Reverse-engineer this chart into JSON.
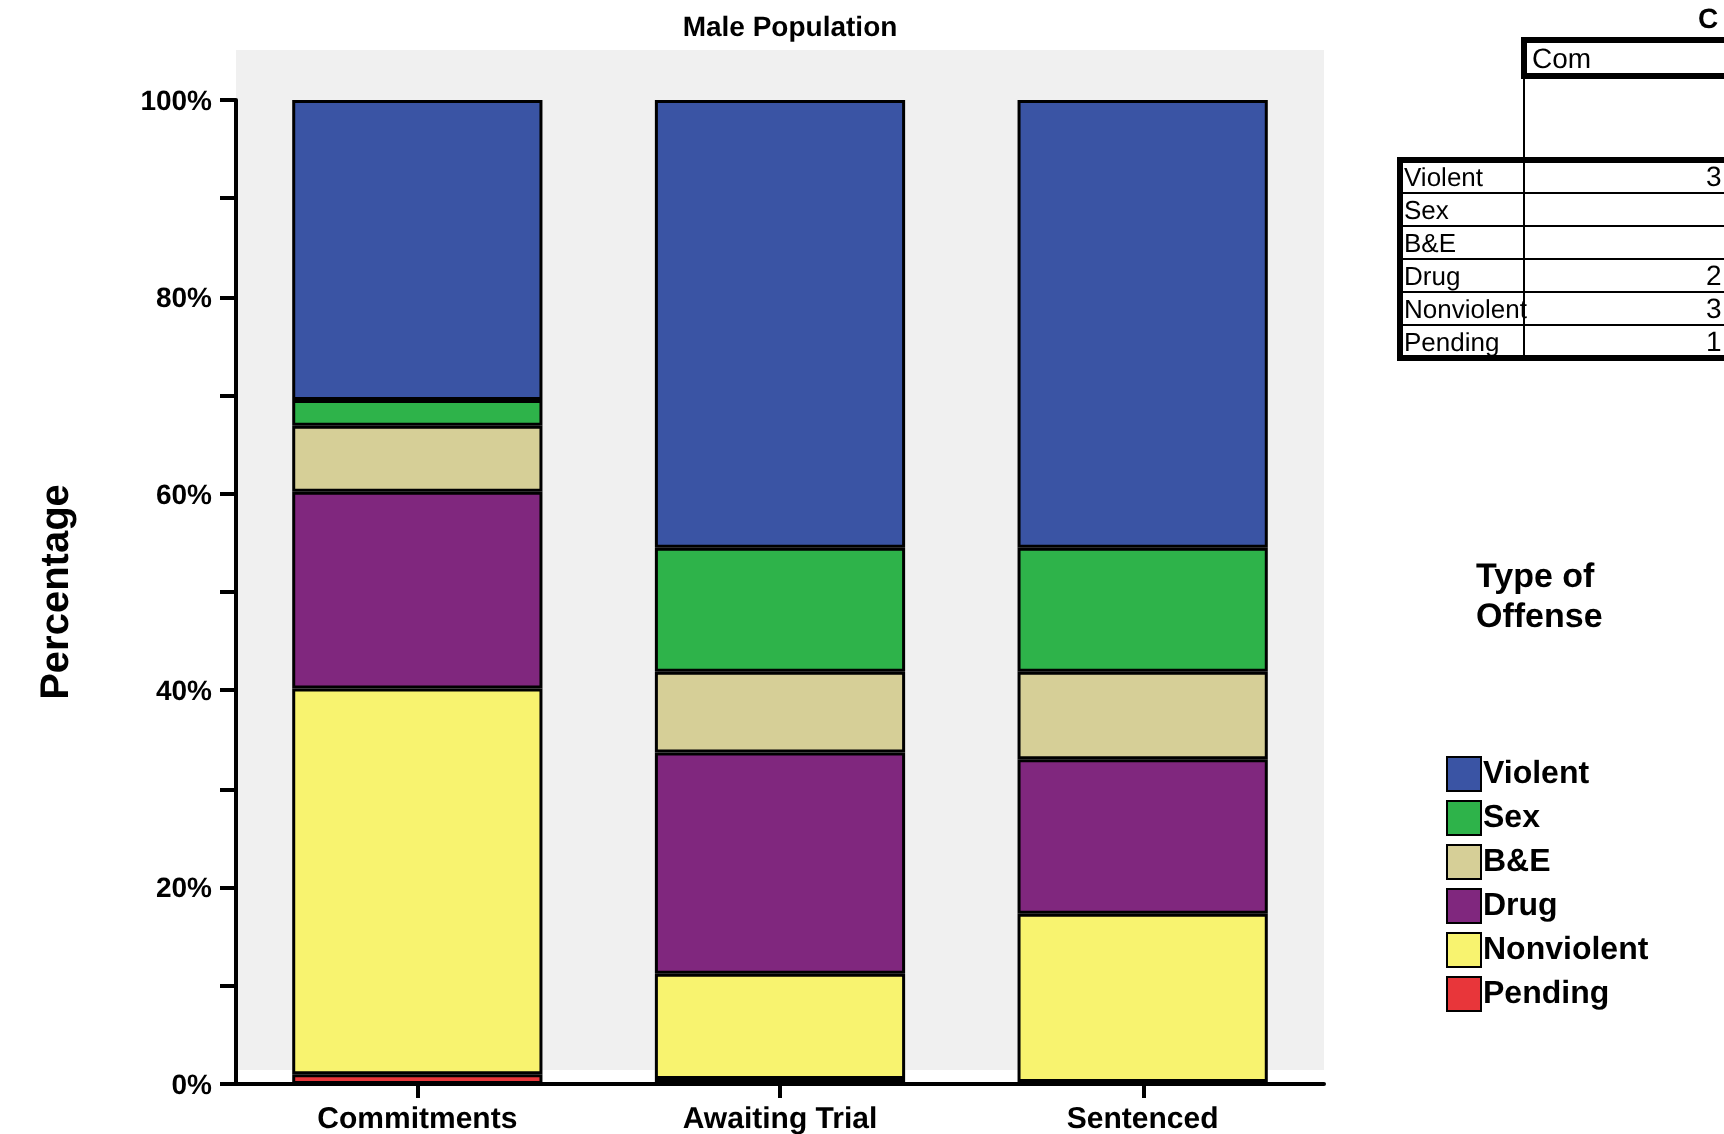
{
  "chart_data": {
    "type": "bar",
    "title": "Male Population",
    "ylabel": "Percentage",
    "legend_title": "Type of Offense",
    "categories": [
      "Commitments",
      "Awaiting Trial",
      "Sentenced"
    ],
    "stacked": true,
    "series": [
      {
        "name": "Pending",
        "color": "#e8363a",
        "values": [
          1.0,
          0.5,
          0.2
        ]
      },
      {
        "name": "Nonviolent",
        "color": "#f8f36f",
        "values": [
          39.2,
          10.7,
          17.1
        ]
      },
      {
        "name": "Drug",
        "color": "#80277e",
        "values": [
          20.0,
          22.5,
          15.7
        ]
      },
      {
        "name": "B&E",
        "color": "#d6cf97",
        "values": [
          6.7,
          8.2,
          8.9
        ]
      },
      {
        "name": "Sex",
        "color": "#2eb34a",
        "values": [
          2.6,
          12.6,
          12.6
        ]
      },
      {
        "name": "Violent",
        "color": "#3a54a4",
        "values": [
          30.5,
          45.5,
          45.5
        ]
      }
    ],
    "ylim": [
      0,
      100
    ],
    "yticks": [
      {
        "value": 0,
        "label": "0%"
      },
      {
        "value": 10,
        "label": null
      },
      {
        "value": 20,
        "label": "20%"
      },
      {
        "value": 30,
        "label": null
      },
      {
        "value": 40,
        "label": "40%"
      },
      {
        "value": 50,
        "label": null
      },
      {
        "value": 60,
        "label": "60%"
      },
      {
        "value": 70,
        "label": null
      },
      {
        "value": 80,
        "label": "80%"
      },
      {
        "value": 90,
        "label": null
      },
      {
        "value": 100,
        "label": "100%"
      }
    ],
    "grid": false,
    "legend": "right",
    "annotations": [
      "C",
      "Com",
      "Violent",
      "Sex",
      "B&E",
      "Drug",
      "Nonviolent",
      "Pending",
      "3",
      "2",
      "3",
      "1"
    ]
  }
}
